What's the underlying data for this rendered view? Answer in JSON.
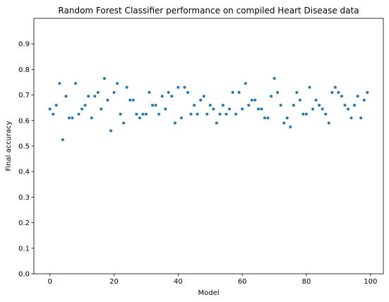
{
  "chart_data": {
    "type": "scatter",
    "title": "Random Forest Classifier performance on compiled Heart Disease data",
    "xlabel": "Model",
    "ylabel": "Final accuracy",
    "xlim": [
      -5,
      104
    ],
    "ylim": [
      0.0,
      1.0
    ],
    "xticks": [
      0,
      20,
      40,
      60,
      80,
      100
    ],
    "yticks": [
      0.0,
      0.1,
      0.2,
      0.3,
      0.4,
      0.5,
      0.6,
      0.7,
      0.8,
      0.9
    ],
    "ytick_labels": [
      "0.0",
      "0.1",
      "0.2",
      "0.3",
      "0.4",
      "0.5",
      "0.6",
      "0.7",
      "0.8",
      "0.9"
    ],
    "grid": false,
    "marker_color": "#1f77b4",
    "series": [
      {
        "x": [
          0,
          1,
          2,
          3,
          4,
          5,
          6,
          7,
          8,
          9,
          10,
          11,
          12,
          13,
          14,
          15,
          16,
          17,
          18,
          19,
          20,
          21,
          22,
          23,
          24,
          25,
          26,
          27,
          28,
          29,
          30,
          31,
          32,
          33,
          34,
          35,
          36,
          37,
          38,
          39,
          40,
          41,
          42,
          43,
          44,
          45,
          46,
          47,
          48,
          49,
          50,
          51,
          52,
          53,
          54,
          55,
          56,
          57,
          58,
          59,
          60,
          61,
          62,
          63,
          64,
          65,
          66,
          67,
          68,
          69,
          70,
          71,
          72,
          73,
          74,
          75,
          76,
          77,
          78,
          79,
          80,
          81,
          82,
          83,
          84,
          85,
          86,
          87,
          88,
          89,
          90,
          91,
          92,
          93,
          94,
          95,
          96,
          97,
          98,
          99
        ],
        "y": [
          0.645,
          0.625,
          0.66,
          0.745,
          0.525,
          0.695,
          0.61,
          0.61,
          0.745,
          0.625,
          0.645,
          0.66,
          0.695,
          0.61,
          0.695,
          0.71,
          0.645,
          0.765,
          0.68,
          0.56,
          0.71,
          0.745,
          0.625,
          0.59,
          0.73,
          0.68,
          0.68,
          0.625,
          0.61,
          0.625,
          0.625,
          0.71,
          0.66,
          0.66,
          0.625,
          0.695,
          0.645,
          0.71,
          0.695,
          0.59,
          0.73,
          0.61,
          0.73,
          0.71,
          0.625,
          0.66,
          0.625,
          0.68,
          0.695,
          0.625,
          0.66,
          0.645,
          0.59,
          0.625,
          0.66,
          0.625,
          0.645,
          0.71,
          0.625,
          0.71,
          0.645,
          0.745,
          0.66,
          0.68,
          0.68,
          0.645,
          0.645,
          0.61,
          0.61,
          0.695,
          0.765,
          0.71,
          0.66,
          0.59,
          0.61,
          0.575,
          0.66,
          0.71,
          0.68,
          0.625,
          0.625,
          0.73,
          0.645,
          0.68,
          0.66,
          0.645,
          0.625,
          0.59,
          0.71,
          0.73,
          0.71,
          0.695,
          0.66,
          0.645,
          0.61,
          0.66,
          0.695,
          0.61,
          0.68,
          0.71
        ]
      }
    ]
  }
}
